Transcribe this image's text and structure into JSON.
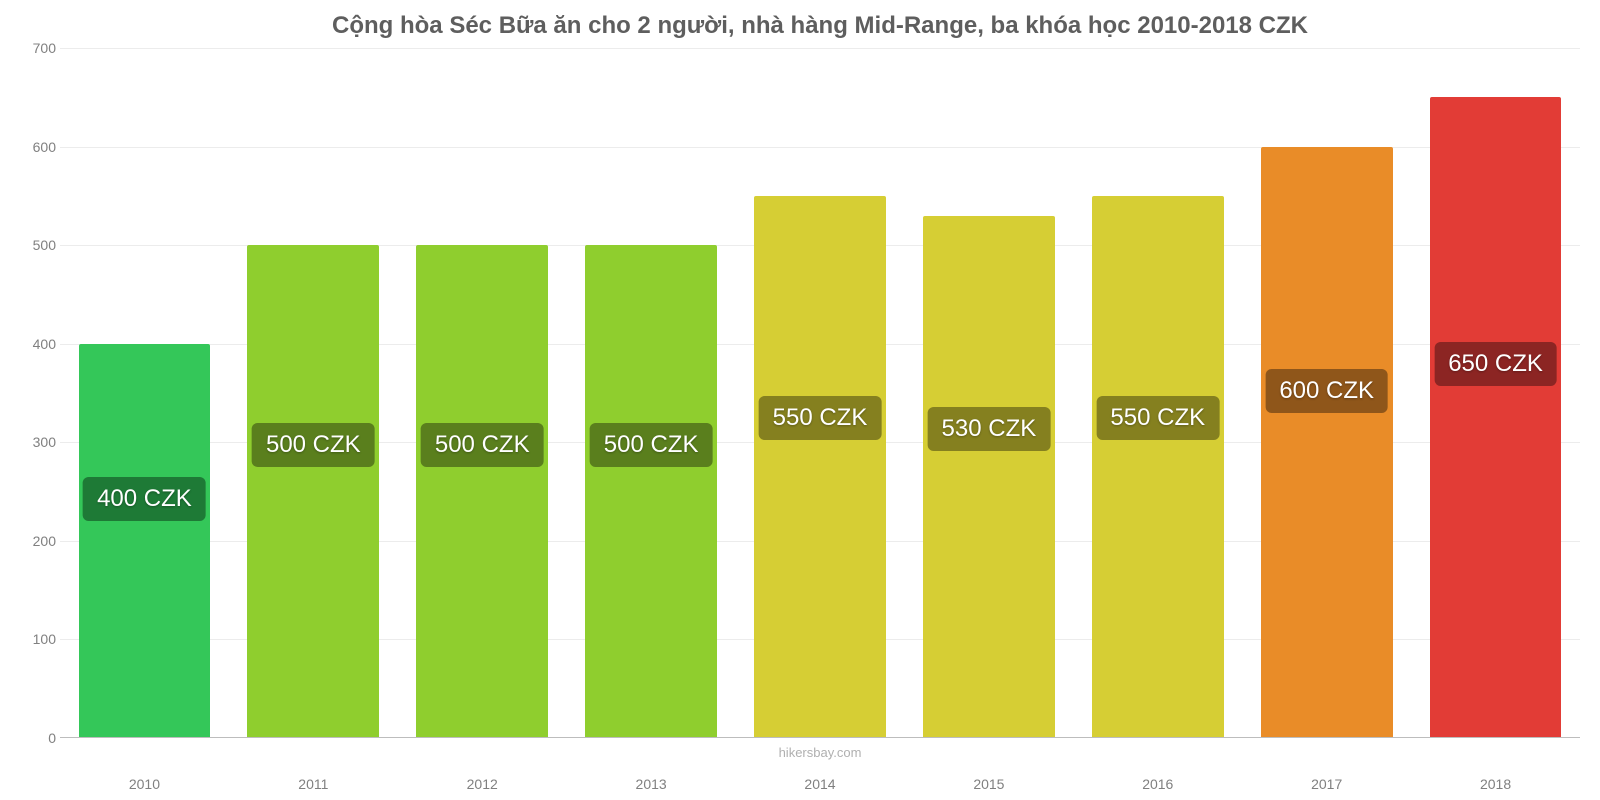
{
  "chart": {
    "type": "bar",
    "title": "Cộng hòa Séc Bữa ăn cho 2 người, nhà hàng Mid-Range, ba khóa học 2010-2018 CZK",
    "title_fontsize": 24,
    "title_color": "#5e5e5e",
    "background_color": "#ffffff",
    "grid_color": "#ececec",
    "baseline_color": "#bdbdbd",
    "tick_label_color": "#808080",
    "tick_fontsize": 14,
    "ylim": [
      0,
      700
    ],
    "ytick_step": 100,
    "yticks": [
      0,
      100,
      200,
      300,
      400,
      500,
      600,
      700
    ],
    "categories": [
      "2010",
      "2011",
      "2012",
      "2013",
      "2014",
      "2015",
      "2016",
      "2017",
      "2018"
    ],
    "values": [
      400,
      500,
      500,
      500,
      550,
      530,
      550,
      600,
      650
    ],
    "value_labels": [
      "400 CZK",
      "500 CZK",
      "500 CZK",
      "500 CZK",
      "550 CZK",
      "530 CZK",
      "550 CZK",
      "600 CZK",
      "650 CZK"
    ],
    "bar_colors": [
      "#34c759",
      "#8fce2e",
      "#8fce2e",
      "#8fce2e",
      "#d6ce34",
      "#d6ce34",
      "#d6ce34",
      "#e98c28",
      "#e23c36"
    ],
    "badge_colors": [
      "#1e7a36",
      "#5a7f1d",
      "#5a7f1d",
      "#5a7f1d",
      "#85801f",
      "#85801f",
      "#85801f",
      "#8f561a",
      "#8c2523"
    ],
    "badge_text_color": "#ffffff",
    "badge_fontsize": 24,
    "bar_width_pct": 78,
    "source_text": "hikersbay.com",
    "source_color": "#b0b0b0",
    "source_fontsize": 13
  }
}
